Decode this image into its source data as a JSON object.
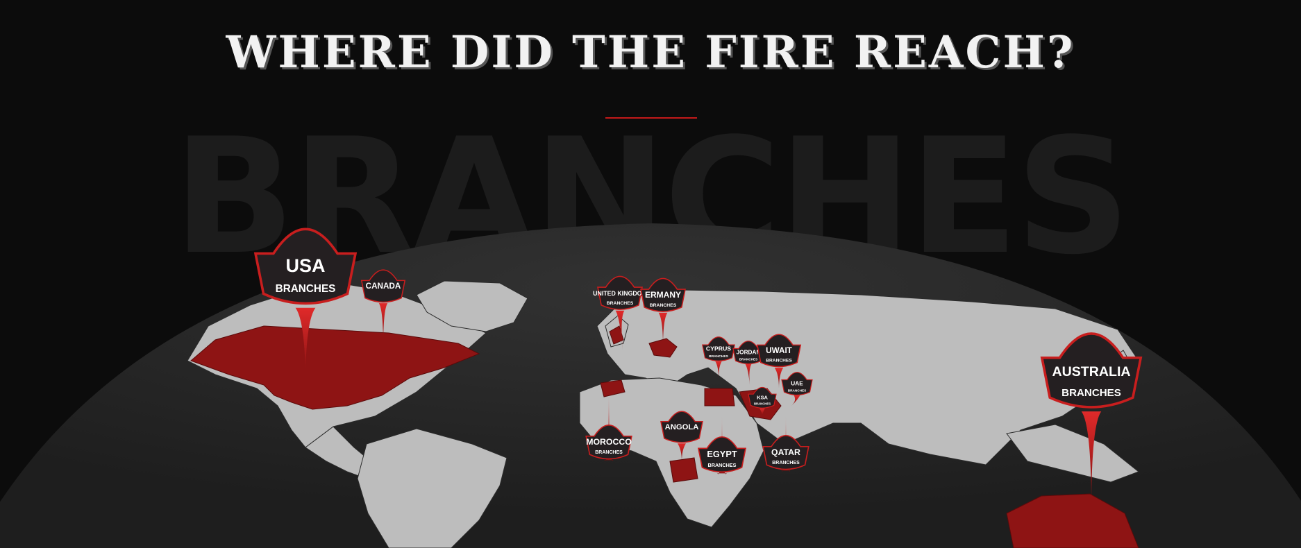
{
  "header": {
    "title": "WHERE DID THE FIRE REACH?",
    "watermark": "BRANCHES"
  },
  "colors": {
    "background": "#0c0c0c",
    "globe": "#2a2a2a",
    "land": "#bdbdbd",
    "highlight": "#8e1414",
    "pin": "#241f21",
    "pin_border": "#c81e1e",
    "divider": "#c41a1a"
  },
  "pins": [
    {
      "id": "usa",
      "country": "USA",
      "sub": "BRANCHES"
    },
    {
      "id": "canada",
      "country": "CANADA",
      "sub": ""
    },
    {
      "id": "uk",
      "country": "UNITED KINGDOM",
      "sub": "BRANCHES"
    },
    {
      "id": "germany",
      "country": "ERMANY",
      "sub": "BRANCHES"
    },
    {
      "id": "cyprus",
      "country": "CYPRUS",
      "sub": "BRANCHES"
    },
    {
      "id": "jordan",
      "country": "JORDAN",
      "sub": "BRANCHES"
    },
    {
      "id": "kuwait",
      "country": "UWAIT",
      "sub": "BRANCHES"
    },
    {
      "id": "uae",
      "country": "UAE",
      "sub": "BRANCHES"
    },
    {
      "id": "ksa",
      "country": "KSA",
      "sub": "BRANCHES"
    },
    {
      "id": "morocco",
      "country": "MOROCCO",
      "sub": "BRANCHES"
    },
    {
      "id": "angola",
      "country": "ANGOLA",
      "sub": ""
    },
    {
      "id": "egypt",
      "country": "EGYPT",
      "sub": "BRANCHES"
    },
    {
      "id": "qatar",
      "country": "QATAR",
      "sub": "BRANCHES"
    },
    {
      "id": "australia",
      "country": "AUSTRALIA",
      "sub": "BRANCHES"
    }
  ]
}
